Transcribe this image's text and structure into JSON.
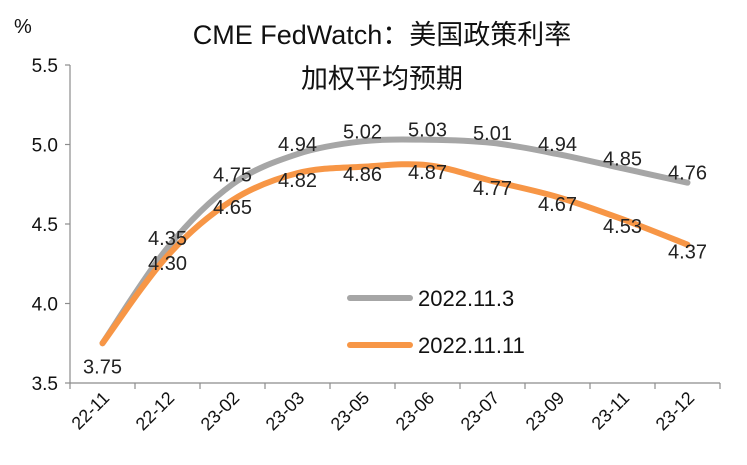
{
  "chart_data": {
    "type": "line",
    "title_line1": "CME FedWatch：美国政策利率",
    "title_line2": "加权平均预期",
    "ylabel": "%",
    "ylim": [
      3.5,
      5.5
    ],
    "yticks": [
      "3.5",
      "4.0",
      "4.5",
      "5.0",
      "5.5"
    ],
    "categories": [
      "22-11",
      "22-12",
      "23-02",
      "23-03",
      "23-05",
      "23-06",
      "23-07",
      "23-09",
      "23-11",
      "23-12"
    ],
    "legend_position": "lower-middle",
    "series": [
      {
        "name": "2022.11.3",
        "color": "#A6A6A6",
        "values": [
          3.75,
          4.35,
          4.75,
          4.94,
          5.02,
          5.03,
          5.01,
          4.94,
          4.85,
          4.76
        ],
        "labels": [
          "3.75",
          "4.35",
          "4.75",
          "4.94",
          "5.02",
          "5.03",
          "5.01",
          "4.94",
          "4.85",
          "4.76"
        ]
      },
      {
        "name": "2022.11.11",
        "color": "#F79646",
        "values": [
          3.75,
          4.3,
          4.65,
          4.82,
          4.86,
          4.87,
          4.77,
          4.67,
          4.53,
          4.37
        ],
        "labels": [
          "3.75",
          "4.30",
          "4.65",
          "4.82",
          "4.86",
          "4.87",
          "4.77",
          "4.67",
          "4.53",
          "4.37"
        ]
      }
    ]
  }
}
